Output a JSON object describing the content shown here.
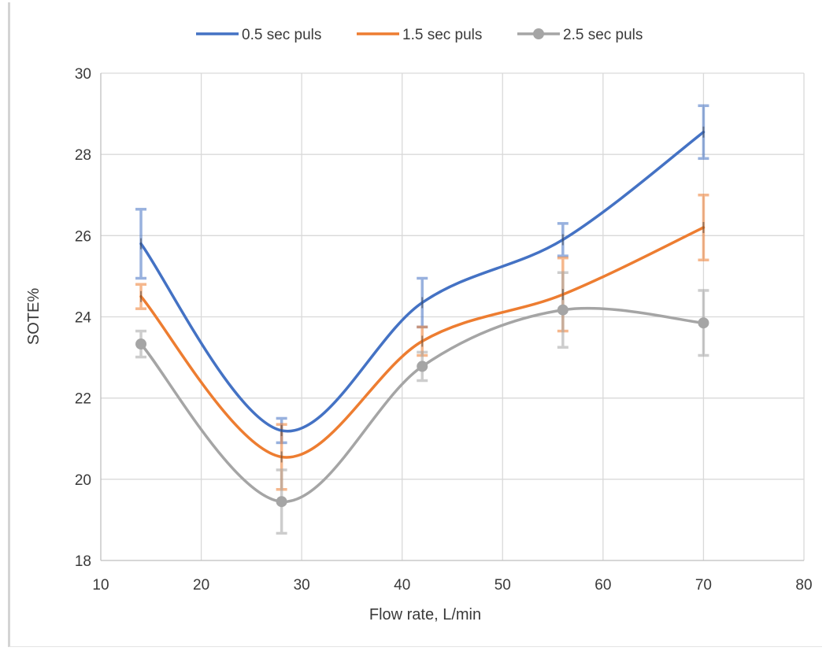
{
  "chart_data": {
    "type": "line",
    "smooth": true,
    "xlabel": "Flow rate, L/min",
    "ylabel": "SOTE%",
    "xlim": [
      10,
      80
    ],
    "ylim": [
      18,
      30
    ],
    "x_ticks": [
      10,
      20,
      30,
      40,
      50,
      60,
      70,
      80
    ],
    "y_ticks": [
      18,
      20,
      22,
      24,
      26,
      28,
      30
    ],
    "grid": true,
    "legend_position": "top",
    "x": [
      14,
      28,
      42,
      56,
      70
    ],
    "series": [
      {
        "name": "0.5 sec puls",
        "color": "#4472C4",
        "marker": "none",
        "values": [
          25.8,
          21.2,
          24.35,
          25.9,
          28.55
        ],
        "error": [
          0.85,
          0.3,
          0.6,
          0.4,
          0.65
        ]
      },
      {
        "name": "1.5 sec puls",
        "color": "#ED7D31",
        "marker": "none",
        "values": [
          24.5,
          20.55,
          23.4,
          24.55,
          26.2
        ],
        "error": [
          0.3,
          0.8,
          0.35,
          0.9,
          0.8
        ]
      },
      {
        "name": "2.5 sec puls",
        "color": "#A5A5A5",
        "marker": "circle",
        "values": [
          23.33,
          19.45,
          22.78,
          24.17,
          23.85
        ],
        "error": [
          0.32,
          0.78,
          0.35,
          0.92,
          0.8
        ]
      }
    ]
  }
}
